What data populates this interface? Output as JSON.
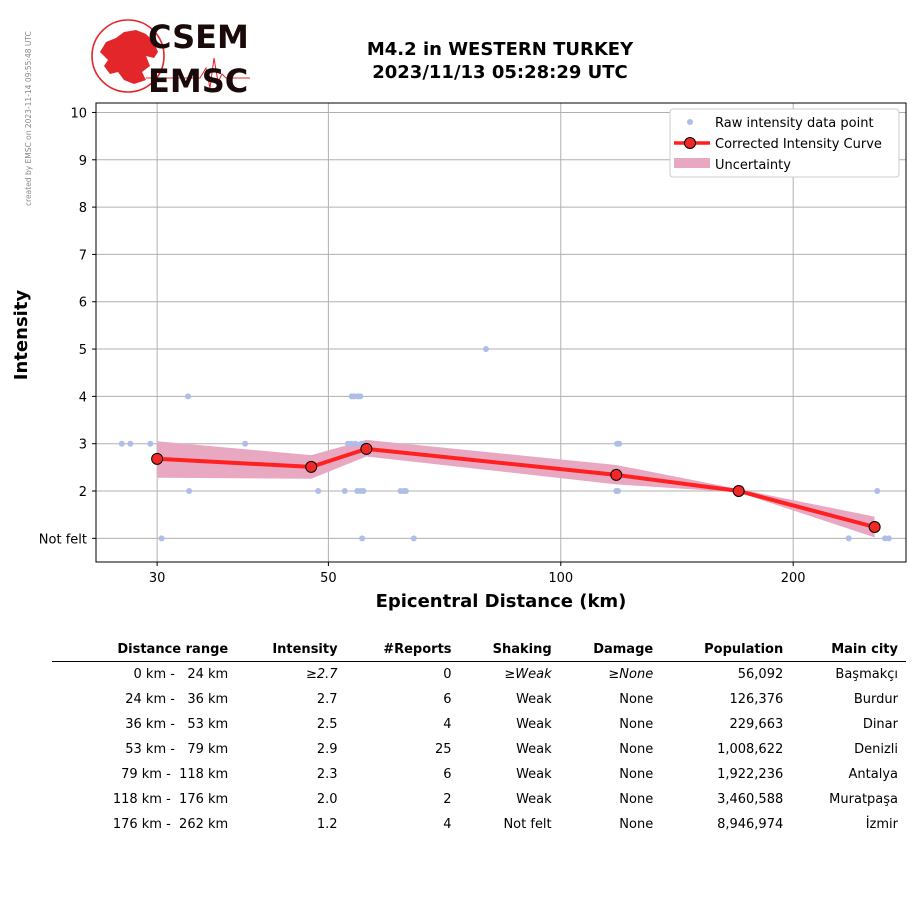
{
  "side_note": "created by EMSC on 2023-11-14 09:55:48 UTC",
  "logo": {
    "line1": "CSEM",
    "line2": "EMSC",
    "color": "#e3262a"
  },
  "title": {
    "line1": "M4.2 in WESTERN TURKEY",
    "line2": "2023/11/13 05:28:29 UTC"
  },
  "chart_data": {
    "type": "scatter",
    "xlabel": "Epicentral Distance (km)",
    "ylabel": "Intensity",
    "xscale": "log",
    "xlim": [
      25,
      280
    ],
    "ylim": [
      0.5,
      10.2
    ],
    "x_ticks": [
      30,
      50,
      100,
      200
    ],
    "y_ticks": [
      1,
      2,
      3,
      4,
      5,
      6,
      7,
      8,
      9,
      10
    ],
    "y_tick_labels": [
      "Not felt",
      "2",
      "3",
      "4",
      "5",
      "6",
      "7",
      "8",
      "9",
      "10"
    ],
    "grid": true,
    "legend_position": "top-right",
    "legend": {
      "raw": "Raw intensity data point",
      "curve": "Corrected Intensity Curve",
      "band": "Uncertainty"
    },
    "colors": {
      "raw": "#aebee8",
      "curve": "#ff2020",
      "marker_fill": "#f02828",
      "band": "#e8a8c2"
    },
    "raw_points": [
      {
        "x": 27,
        "y": 3
      },
      {
        "x": 27.7,
        "y": 3
      },
      {
        "x": 29.4,
        "y": 3
      },
      {
        "x": 30.4,
        "y": 1
      },
      {
        "x": 32.9,
        "y": 4
      },
      {
        "x": 33,
        "y": 2
      },
      {
        "x": 39,
        "y": 3
      },
      {
        "x": 48.5,
        "y": 2
      },
      {
        "x": 52.5,
        "y": 2
      },
      {
        "x": 53,
        "y": 3
      },
      {
        "x": 53.5,
        "y": 3
      },
      {
        "x": 53.6,
        "y": 4
      },
      {
        "x": 54,
        "y": 4
      },
      {
        "x": 54.2,
        "y": 3
      },
      {
        "x": 54.5,
        "y": 2
      },
      {
        "x": 54.6,
        "y": 4
      },
      {
        "x": 55,
        "y": 2
      },
      {
        "x": 55,
        "y": 4
      },
      {
        "x": 55.2,
        "y": 3
      },
      {
        "x": 55.3,
        "y": 1
      },
      {
        "x": 55.5,
        "y": 2
      },
      {
        "x": 55.6,
        "y": 3
      },
      {
        "x": 62,
        "y": 2
      },
      {
        "x": 62.6,
        "y": 2
      },
      {
        "x": 63,
        "y": 2
      },
      {
        "x": 64.5,
        "y": 1
      },
      {
        "x": 80,
        "y": 5
      },
      {
        "x": 118,
        "y": 2
      },
      {
        "x": 118.3,
        "y": 3
      },
      {
        "x": 118.6,
        "y": 2
      },
      {
        "x": 119,
        "y": 3
      },
      {
        "x": 236,
        "y": 1
      },
      {
        "x": 257,
        "y": 2
      },
      {
        "x": 263,
        "y": 1
      },
      {
        "x": 266,
        "y": 1
      }
    ],
    "curve": {
      "x": [
        30,
        47.5,
        56,
        118,
        170,
        255
      ],
      "y": [
        2.68,
        2.51,
        2.89,
        2.34,
        2.0,
        1.24
      ]
    },
    "uncertainty": {
      "x": [
        30,
        47.5,
        56,
        118,
        170,
        255
      ],
      "lower": [
        2.28,
        2.26,
        2.73,
        2.14,
        1.97,
        1.02
      ],
      "upper": [
        3.05,
        2.76,
        3.08,
        2.55,
        2.04,
        1.46
      ]
    }
  },
  "table": {
    "headers": [
      "Distance range",
      "Intensity",
      "#Reports",
      "Shaking",
      "Damage",
      "Population",
      "Main city"
    ],
    "rows": [
      {
        "dist": "0 km -   24 km",
        "intensity": "≥2.7",
        "reports": "0",
        "shaking": "≥Weak",
        "damage": "≥None",
        "population": "56,092",
        "city": "Başmakçı",
        "italic": true
      },
      {
        "dist": "24 km -   36 km",
        "intensity": "2.7",
        "reports": "6",
        "shaking": "Weak",
        "damage": "None",
        "population": "126,376",
        "city": "Burdur",
        "italic": false
      },
      {
        "dist": "36 km -   53 km",
        "intensity": "2.5",
        "reports": "4",
        "shaking": "Weak",
        "damage": "None",
        "population": "229,663",
        "city": "Dinar",
        "italic": false
      },
      {
        "dist": "53 km -   79 km",
        "intensity": "2.9",
        "reports": "25",
        "shaking": "Weak",
        "damage": "None",
        "population": "1,008,622",
        "city": "Denizli",
        "italic": false
      },
      {
        "dist": "79 km -  118 km",
        "intensity": "2.3",
        "reports": "6",
        "shaking": "Weak",
        "damage": "None",
        "population": "1,922,236",
        "city": "Antalya",
        "italic": false
      },
      {
        "dist": "118 km -  176 km",
        "intensity": "2.0",
        "reports": "2",
        "shaking": "Weak",
        "damage": "None",
        "population": "3,460,588",
        "city": "Muratpaşa",
        "italic": false
      },
      {
        "dist": "176 km -  262 km",
        "intensity": "1.2",
        "reports": "4",
        "shaking": "Not felt",
        "damage": "None",
        "population": "8,946,974",
        "city": "İzmir",
        "italic": false
      }
    ]
  }
}
